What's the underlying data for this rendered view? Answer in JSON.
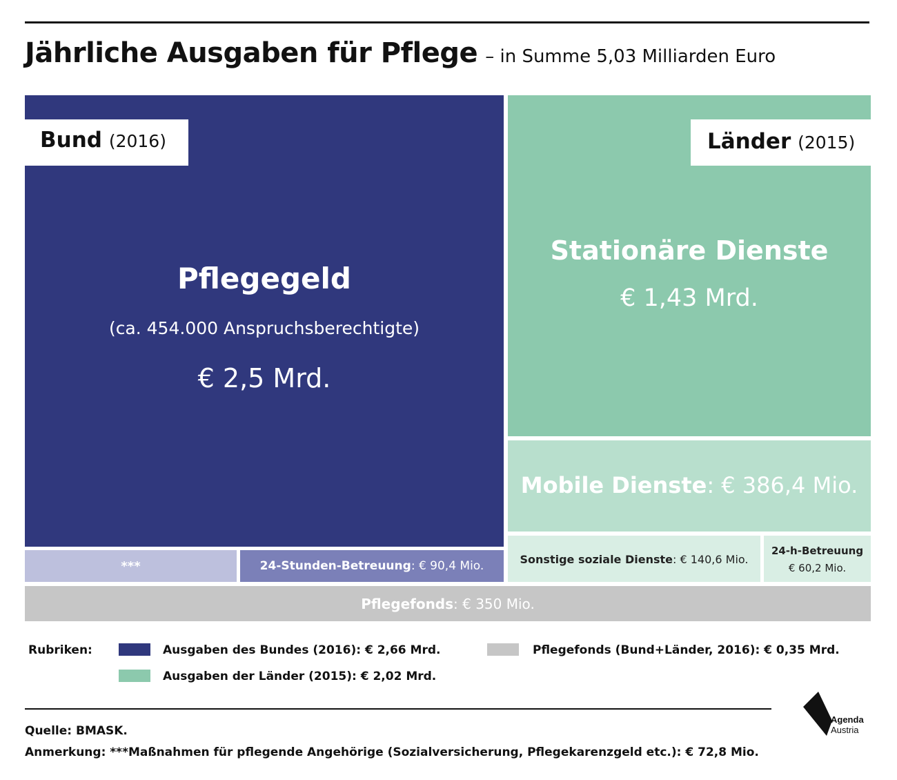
{
  "header": {
    "title": "Jährliche Ausgaben für Pflege",
    "subtitle": "– in Summe 5,03 Milliarden Euro"
  },
  "colors": {
    "bund_dark": "#30387d",
    "bund_light": "#bdc0dd",
    "bund_mid": "#7b80b8",
    "laender_dark": "#8cc9ad",
    "laender_mid": "#b8dfcd",
    "laender_light": "#d9eee4",
    "pflegefonds": "#c6c6c6"
  },
  "chart_data": {
    "type": "treemap",
    "groups": [
      {
        "label": "Bund",
        "year": "(2016)",
        "items": [
          {
            "name": "Pflegegeld",
            "note": "(ca. 454.000 Anspruchsberechtigte)",
            "value_text": "€ 2,5 Mrd.",
            "value_mio": 2500
          },
          {
            "name": "***",
            "value_mio": 72.8
          },
          {
            "name": "24-Stunden-Betreuung",
            "value_text": "€ 90,4 Mio.",
            "value_mio": 90.4
          }
        ]
      },
      {
        "label": "Länder",
        "year": "(2015)",
        "items": [
          {
            "name": "Stationäre Dienste",
            "value_text": "€ 1,43 Mrd.",
            "value_mio": 1430
          },
          {
            "name": "Mobile Dienste",
            "value_text": "€ 386,4 Mio.",
            "value_mio": 386.4
          },
          {
            "name": "Sonstige soziale Dienste",
            "value_text": "€ 140,6 Mio.",
            "value_mio": 140.6
          },
          {
            "name": "24-h-Betreuung",
            "value_text": "€ 60,2 Mio.",
            "value_mio": 60.2
          }
        ]
      },
      {
        "label": "",
        "items": [
          {
            "name": "Pflegefonds",
            "value_text": "€ 350 Mio.",
            "value_mio": 350
          }
        ]
      }
    ]
  },
  "tiles": {
    "pflegegeld": {
      "title": "Pflegegeld",
      "note": "(ca. 454.000 Anspruchsberechtigte)",
      "value": "€ 2,5 Mrd."
    },
    "stars": {
      "label": "***"
    },
    "stunden24": {
      "name": "24-Stunden-Betreuung",
      "value": ": € 90,4 Mio."
    },
    "stationaer": {
      "title": "Stationäre Dienste",
      "value": "€ 1,43 Mrd."
    },
    "mobile": {
      "name": "Mobile Dienste",
      "value": ": € 386,4 Mio."
    },
    "sonstige": {
      "name": "Sonstige soziale Dienste",
      "value": ": € 140,6 Mio."
    },
    "h24": {
      "name": "24-h-Betreuung",
      "value": "€ 60,2 Mio."
    },
    "pflegefonds": {
      "name": "Pflegefonds",
      "value": ": € 350 Mio."
    },
    "bund_tag": {
      "label": "Bund",
      "year": "(2016)"
    },
    "laender_tag": {
      "label": "Länder",
      "year": "(2015)"
    }
  },
  "legend": {
    "title": "Rubriken:",
    "items": [
      {
        "label": "Ausgaben des Bundes (2016): € 2,66 Mrd."
      },
      {
        "label": "Ausgaben der Länder (2015): € 2,02 Mrd."
      },
      {
        "label": "Pflegefonds (Bund+Länder, 2016): € 0,35 Mrd."
      }
    ]
  },
  "footer": {
    "source": "Quelle: BMASK.",
    "note": "Anmerkung: ***Maßnahmen für pflegende Angehörige (Sozialversicherung, Pflegekarenzgeld etc.): € 72,8 Mio."
  },
  "logo": {
    "line1": "Agenda",
    "line2": "Austria"
  }
}
